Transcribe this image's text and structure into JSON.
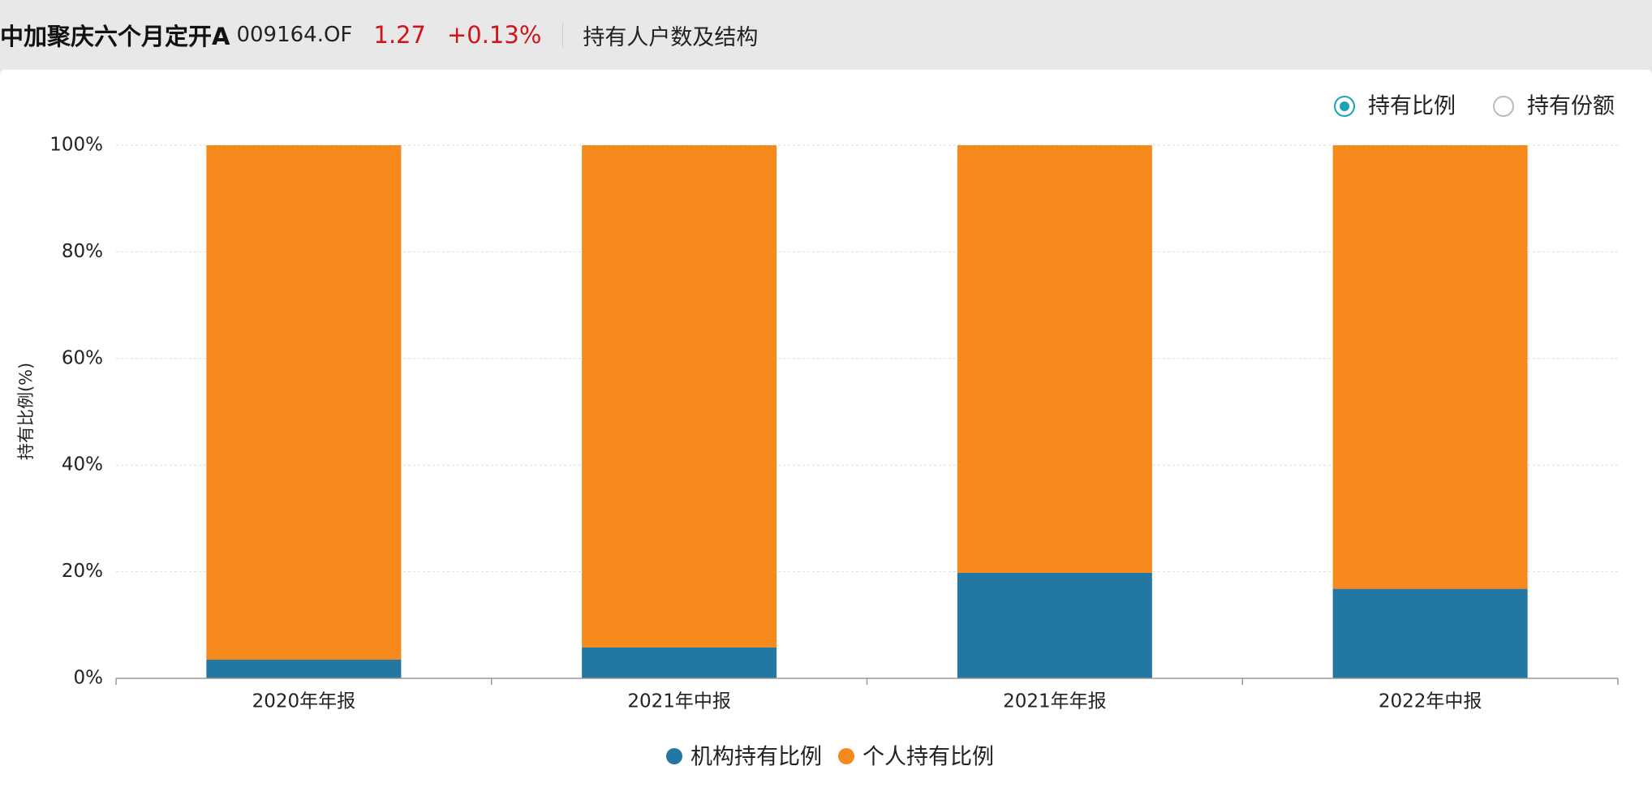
{
  "header": {
    "title": "中加聚庆六个月定开A",
    "code": "009164.OF",
    "price": "1.27",
    "change": "+0.13%",
    "section": "持有人户数及结构"
  },
  "controls": {
    "options": [
      "持有比例",
      "持有份额"
    ],
    "selected": 0
  },
  "chart_data": {
    "type": "bar",
    "stacked": true,
    "categories": [
      "2020年年报",
      "2021年中报",
      "2021年年报",
      "2022年中报"
    ],
    "series": [
      {
        "name": "机构持有比例",
        "color": "#2277a3",
        "values": [
          3.5,
          5.8,
          19.8,
          16.8
        ]
      },
      {
        "name": "个人持有比例",
        "color": "#f5891b",
        "values": [
          96.5,
          94.2,
          80.2,
          83.2
        ]
      }
    ],
    "y_label": "持有比例(%)",
    "ylim": [
      0,
      100
    ],
    "yticks": [
      {
        "value": 0,
        "label": "0%"
      },
      {
        "value": 20,
        "label": "20%"
      },
      {
        "value": 40,
        "label": "40%"
      },
      {
        "value": 60,
        "label": "60%"
      },
      {
        "value": 80,
        "label": "80%"
      },
      {
        "value": 100,
        "label": "100%"
      }
    ],
    "grid": true,
    "legend": "bottom"
  }
}
